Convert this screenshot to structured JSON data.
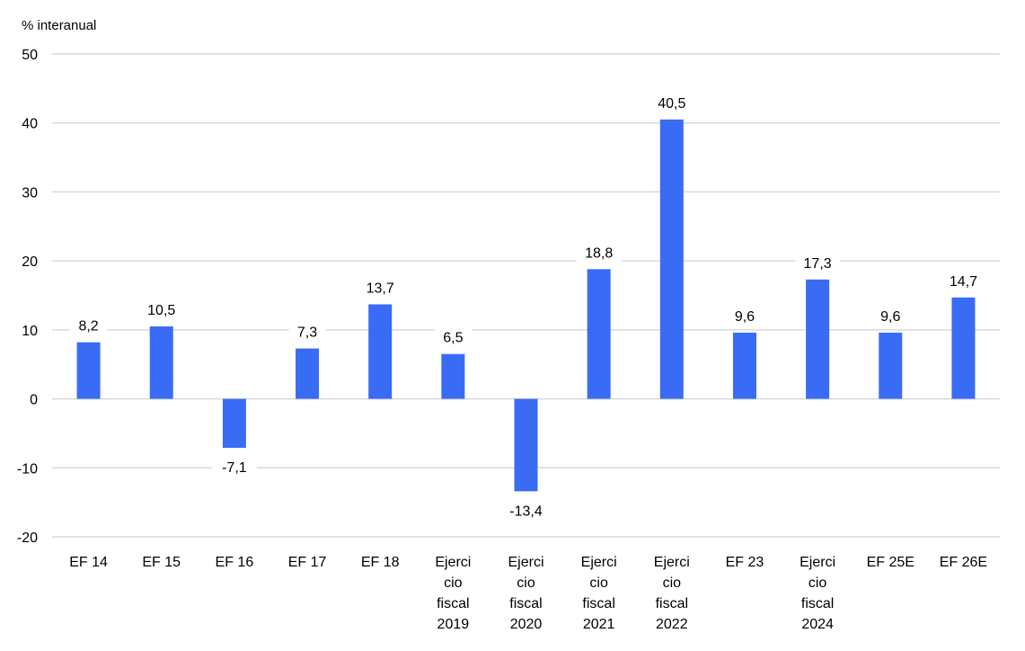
{
  "chart_data": {
    "type": "bar",
    "ylabel": "% interanual",
    "ylim": [
      -20,
      50
    ],
    "yticks": [
      50,
      40,
      30,
      20,
      10,
      0,
      -10,
      -20
    ],
    "grid": true,
    "colors": {
      "bar": "#3A6BF5",
      "grid": "#D9D9D9",
      "text": "#000000"
    },
    "categories": [
      [
        "EF 14"
      ],
      [
        "EF 15"
      ],
      [
        "EF 16"
      ],
      [
        "EF 17"
      ],
      [
        "EF 18"
      ],
      [
        "Ejerci",
        "cio",
        "fiscal",
        "2019"
      ],
      [
        "Ejerci",
        "cio",
        "fiscal",
        "2020"
      ],
      [
        "Ejerci",
        "cio",
        "fiscal",
        "2021"
      ],
      [
        "Ejerci",
        "cio",
        "fiscal",
        "2022"
      ],
      [
        "EF 23"
      ],
      [
        "Ejerci",
        "cio",
        "fiscal",
        "2024"
      ],
      [
        "EF 25E"
      ],
      [
        "EF 26E"
      ]
    ],
    "values": [
      8.2,
      10.5,
      -7.1,
      7.3,
      13.7,
      6.5,
      -13.4,
      18.8,
      40.5,
      9.6,
      17.3,
      9.6,
      14.7
    ],
    "labels": [
      "8,2",
      "10,5",
      "-7,1",
      "7,3",
      "13,7",
      "6,5",
      "-13,4",
      "18,8",
      "40,5",
      "9,6",
      "17,3",
      "9,6",
      "14,7"
    ]
  }
}
